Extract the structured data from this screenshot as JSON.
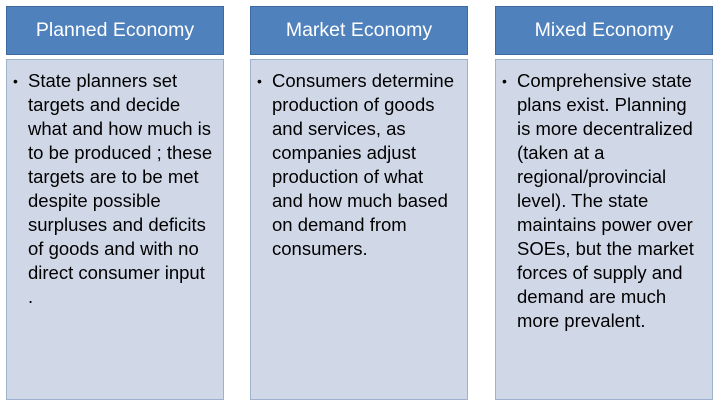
{
  "columns": [
    {
      "title": "Planned Economy",
      "text": "State planners set targets and decide what and how much is to be produced ; these targets are to be met despite possible surpluses and deficits of goods and with no direct consumer input ."
    },
    {
      "title": "Market Economy",
      "text": "Consumers determine production of goods and services, as companies adjust production of what and how much based on demand from consumers."
    },
    {
      "title": "Mixed Economy",
      "text": "Comprehensive state plans exist. Planning is more decentralized (taken at a regional/provincial level). The state maintains power over SOEs, but the market forces of supply and demand are much more prevalent."
    }
  ],
  "colors": {
    "header_fill": "#4f81bd",
    "body_fill": "#d0d8e8",
    "header_text": "#ffffff",
    "body_text": "#000000"
  },
  "bullet_icon": "bullet-dot-icon"
}
